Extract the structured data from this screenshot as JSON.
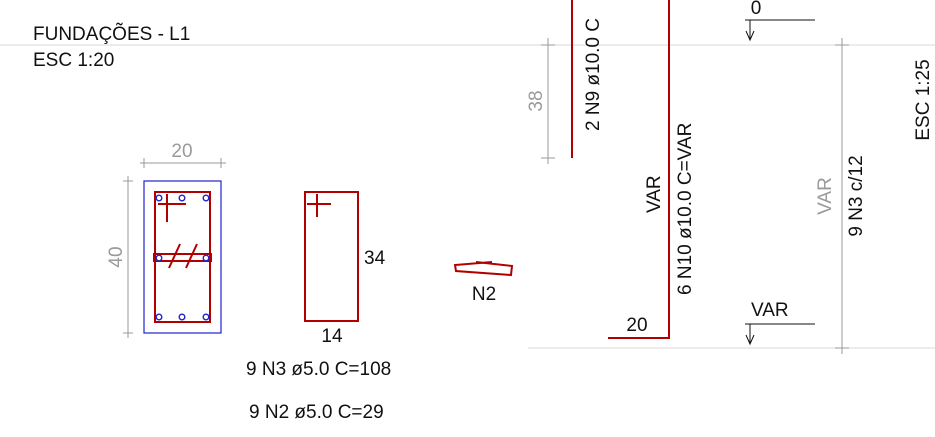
{
  "title": "FUNDAÇÕES - L1",
  "scale_left": "ESC 1:20",
  "scale_right": "ESC 1:25",
  "section": {
    "width_dim": "20",
    "height_dim": "40"
  },
  "stirrup_n3": {
    "height_dim": "34",
    "width_dim": "14",
    "spec": "9 N3 ø5.0  C=108"
  },
  "hook_n2": {
    "label": "N2",
    "spec": "9 N2 ø5.0  C=29"
  },
  "elevation": {
    "dim_38": "38",
    "top_bar": "2 N9 ø10.0  C",
    "main_bar": "6 N10 ø10.0  C=VAR",
    "var_vertical": "VAR",
    "foot_dim": "20",
    "level_top": "0",
    "level_bottom": "VAR",
    "var_grey": "VAR",
    "stirrups": "9 N3 c/12"
  },
  "colors": {
    "rebar": "#b00000",
    "concrete_outline": "#2222cc",
    "dimension": "#9a9a9a",
    "text": "#111111"
  }
}
